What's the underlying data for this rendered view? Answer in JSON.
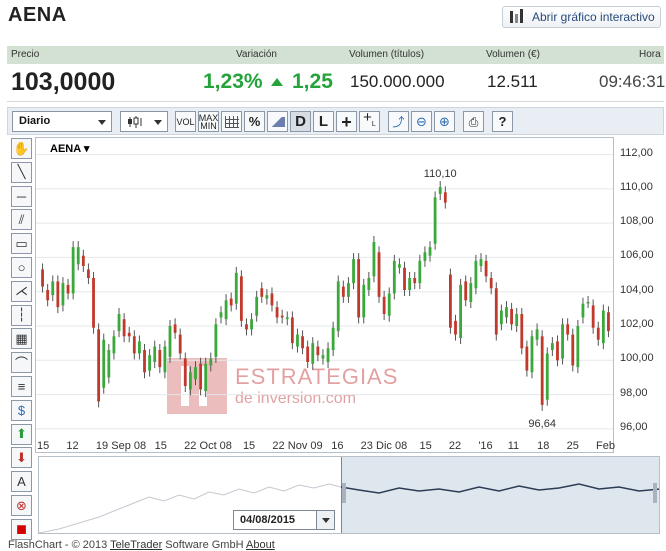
{
  "page": {
    "title": "AENA",
    "open_chart_label": "Abrir gráfico interactivo"
  },
  "quote": {
    "headers": {
      "price": "Precio",
      "change": "Variación",
      "volume_shares": "Volumen (títulos)",
      "volume_eur": "Volumen (€)",
      "time": "Hora"
    },
    "price": "103,0000",
    "change_pct": "1,23%",
    "change_abs": "1,25",
    "volume_shares": "150.000.000",
    "volume_eur": "12.511",
    "time": "09:46:31",
    "up_color": "#25a33b"
  },
  "toolbar": {
    "interval": "Diario",
    "vol_label": "VOL",
    "maxmin_label": "MAX MIN",
    "pct_label": "%",
    "d_label": "D",
    "l_label": "L",
    "help_label": "?"
  },
  "left_tools": [
    "hand-icon",
    "line-icon",
    "horizontal-line-icon",
    "channel-icon",
    "rectangle-icon",
    "circle-icon",
    "fan-icon",
    "fibonacci-icon",
    "grid-icon",
    "arc-icon",
    "parallel-icon",
    "dollar-icon",
    "up-arrow-icon",
    "down-arrow-icon",
    "text-icon",
    "delete-icon",
    "color-icon"
  ],
  "left_text": {
    "text_tool": "A"
  },
  "chart_data": {
    "type": "candlestick",
    "series_label": "AENA",
    "y_axis": {
      "ticks": [
        "112,00",
        "110,00",
        "108,00",
        "106,00",
        "104,00",
        "102,00",
        "100,00",
        "98,00",
        "96,00"
      ],
      "ylim": [
        95,
        112.5
      ]
    },
    "x_axis": {
      "ticks": [
        "15",
        "12",
        "19",
        "Sep 08",
        "15",
        "22",
        "Oct 08",
        "15",
        "22",
        "Nov 09",
        "16",
        "23",
        "Dic 08",
        "15",
        "22",
        "'16",
        "11",
        "18",
        "25",
        "Feb"
      ]
    },
    "annotations": [
      {
        "label": "110,10"
      },
      {
        "label": "96,64"
      }
    ],
    "up_color": "#3aa83a",
    "down_color": "#c0392b",
    "candles": [
      [
        105.3,
        104.3
      ],
      [
        104.1,
        103.5
      ],
      [
        103.8,
        104.6
      ],
      [
        104.6,
        103.1
      ],
      [
        103.2,
        104.5
      ],
      [
        104.4,
        103.9
      ],
      [
        103.9,
        106.6
      ],
      [
        105.6,
        106.6
      ],
      [
        106.1,
        105.5
      ],
      [
        105.3,
        104.8
      ],
      [
        104.8,
        101.9
      ],
      [
        101.8,
        97.6
      ],
      [
        98.4,
        101.2
      ],
      [
        99.0,
        100.6
      ],
      [
        100.4,
        101.4
      ],
      [
        101.7,
        102.7
      ],
      [
        102.4,
        101.4
      ],
      [
        101.6,
        101.4
      ],
      [
        101.4,
        100.4
      ],
      [
        100.4,
        101.1
      ],
      [
        100.6,
        99.3
      ],
      [
        99.4,
        100.3
      ],
      [
        99.9,
        100.8
      ],
      [
        100.6,
        99.6
      ],
      [
        99.3,
        100.8
      ],
      [
        100.2,
        102.0
      ],
      [
        102.1,
        101.6
      ],
      [
        101.5,
        100.4
      ],
      [
        100.1,
        98.5
      ],
      [
        98.3,
        99.3
      ],
      [
        98.9,
        99.6
      ],
      [
        99.8,
        98.3
      ],
      [
        98.2,
        99.8
      ],
      [
        99.7,
        100.1
      ],
      [
        100.2,
        102.1
      ],
      [
        102.5,
        102.8
      ],
      [
        102.4,
        103.5
      ],
      [
        103.6,
        103.2
      ],
      [
        103.3,
        105.1
      ],
      [
        104.9,
        102.3
      ],
      [
        102.1,
        101.8
      ],
      [
        101.8,
        102.4
      ],
      [
        102.6,
        103.7
      ],
      [
        104.2,
        103.7
      ],
      [
        103.6,
        103.8
      ],
      [
        103.9,
        103.2
      ],
      [
        103.1,
        102.5
      ],
      [
        102.6,
        102.5
      ],
      [
        102.4,
        102.5
      ],
      [
        102.5,
        101.0
      ],
      [
        100.8,
        101.5
      ],
      [
        101.4,
        100.7
      ],
      [
        100.8,
        99.9
      ],
      [
        99.8,
        101.0
      ],
      [
        100.8,
        100.3
      ],
      [
        100.1,
        100.3
      ],
      [
        99.9,
        100.7
      ],
      [
        100.6,
        101.9
      ],
      [
        101.7,
        104.6
      ],
      [
        104.3,
        103.7
      ],
      [
        103.7,
        104.5
      ],
      [
        104.5,
        105.9
      ],
      [
        105.9,
        102.5
      ],
      [
        102.5,
        104.4
      ],
      [
        104.1,
        104.8
      ],
      [
        104.9,
        106.9
      ],
      [
        106.3,
        103.7
      ],
      [
        103.7,
        102.7
      ],
      [
        102.6,
        103.9
      ],
      [
        103.9,
        105.8
      ],
      [
        105.4,
        105.6
      ],
      [
        105.4,
        104.1
      ],
      [
        104.1,
        104.8
      ],
      [
        104.8,
        104.5
      ],
      [
        104.5,
        105.8
      ],
      [
        105.8,
        106.3
      ],
      [
        106.1,
        106.6
      ],
      [
        106.8,
        109.5
      ],
      [
        109.7,
        110.1
      ],
      [
        109.8,
        109.2
      ],
      [
        105.0,
        101.9
      ],
      [
        102.3,
        101.5
      ],
      [
        101.3,
        104.4
      ],
      [
        104.6,
        103.5
      ],
      [
        103.4,
        104.5
      ],
      [
        104.2,
        105.8
      ],
      [
        105.5,
        105.9
      ],
      [
        105.8,
        104.9
      ],
      [
        104.8,
        104.2
      ],
      [
        104.2,
        101.5
      ],
      [
        102.1,
        102.9
      ],
      [
        102.5,
        103.1
      ],
      [
        103.0,
        102.1
      ],
      [
        102.0,
        102.7
      ],
      [
        102.7,
        100.7
      ],
      [
        100.8,
        99.4
      ],
      [
        99.3,
        101.4
      ],
      [
        101.2,
        101.8
      ],
      [
        101.4,
        97.4
      ],
      [
        97.7,
        100.4
      ],
      [
        100.6,
        101.0
      ],
      [
        101.1,
        100.0
      ],
      [
        100.1,
        102.1
      ],
      [
        102.1,
        101.5
      ],
      [
        101.5,
        99.7
      ],
      [
        99.6,
        102.0
      ],
      [
        102.5,
        103.3
      ],
      [
        103.4,
        103.4
      ],
      [
        103.2,
        101.9
      ],
      [
        101.9,
        101.2
      ],
      [
        101.0,
        102.9
      ],
      [
        102.8,
        101.7
      ]
    ]
  },
  "navigator": {
    "date": "04/08/2015"
  },
  "footer": {
    "prefix": "FlashChart - © 2013 ",
    "company": "TeleTrader",
    "middle": " Software GmbH ",
    "about": "About"
  }
}
